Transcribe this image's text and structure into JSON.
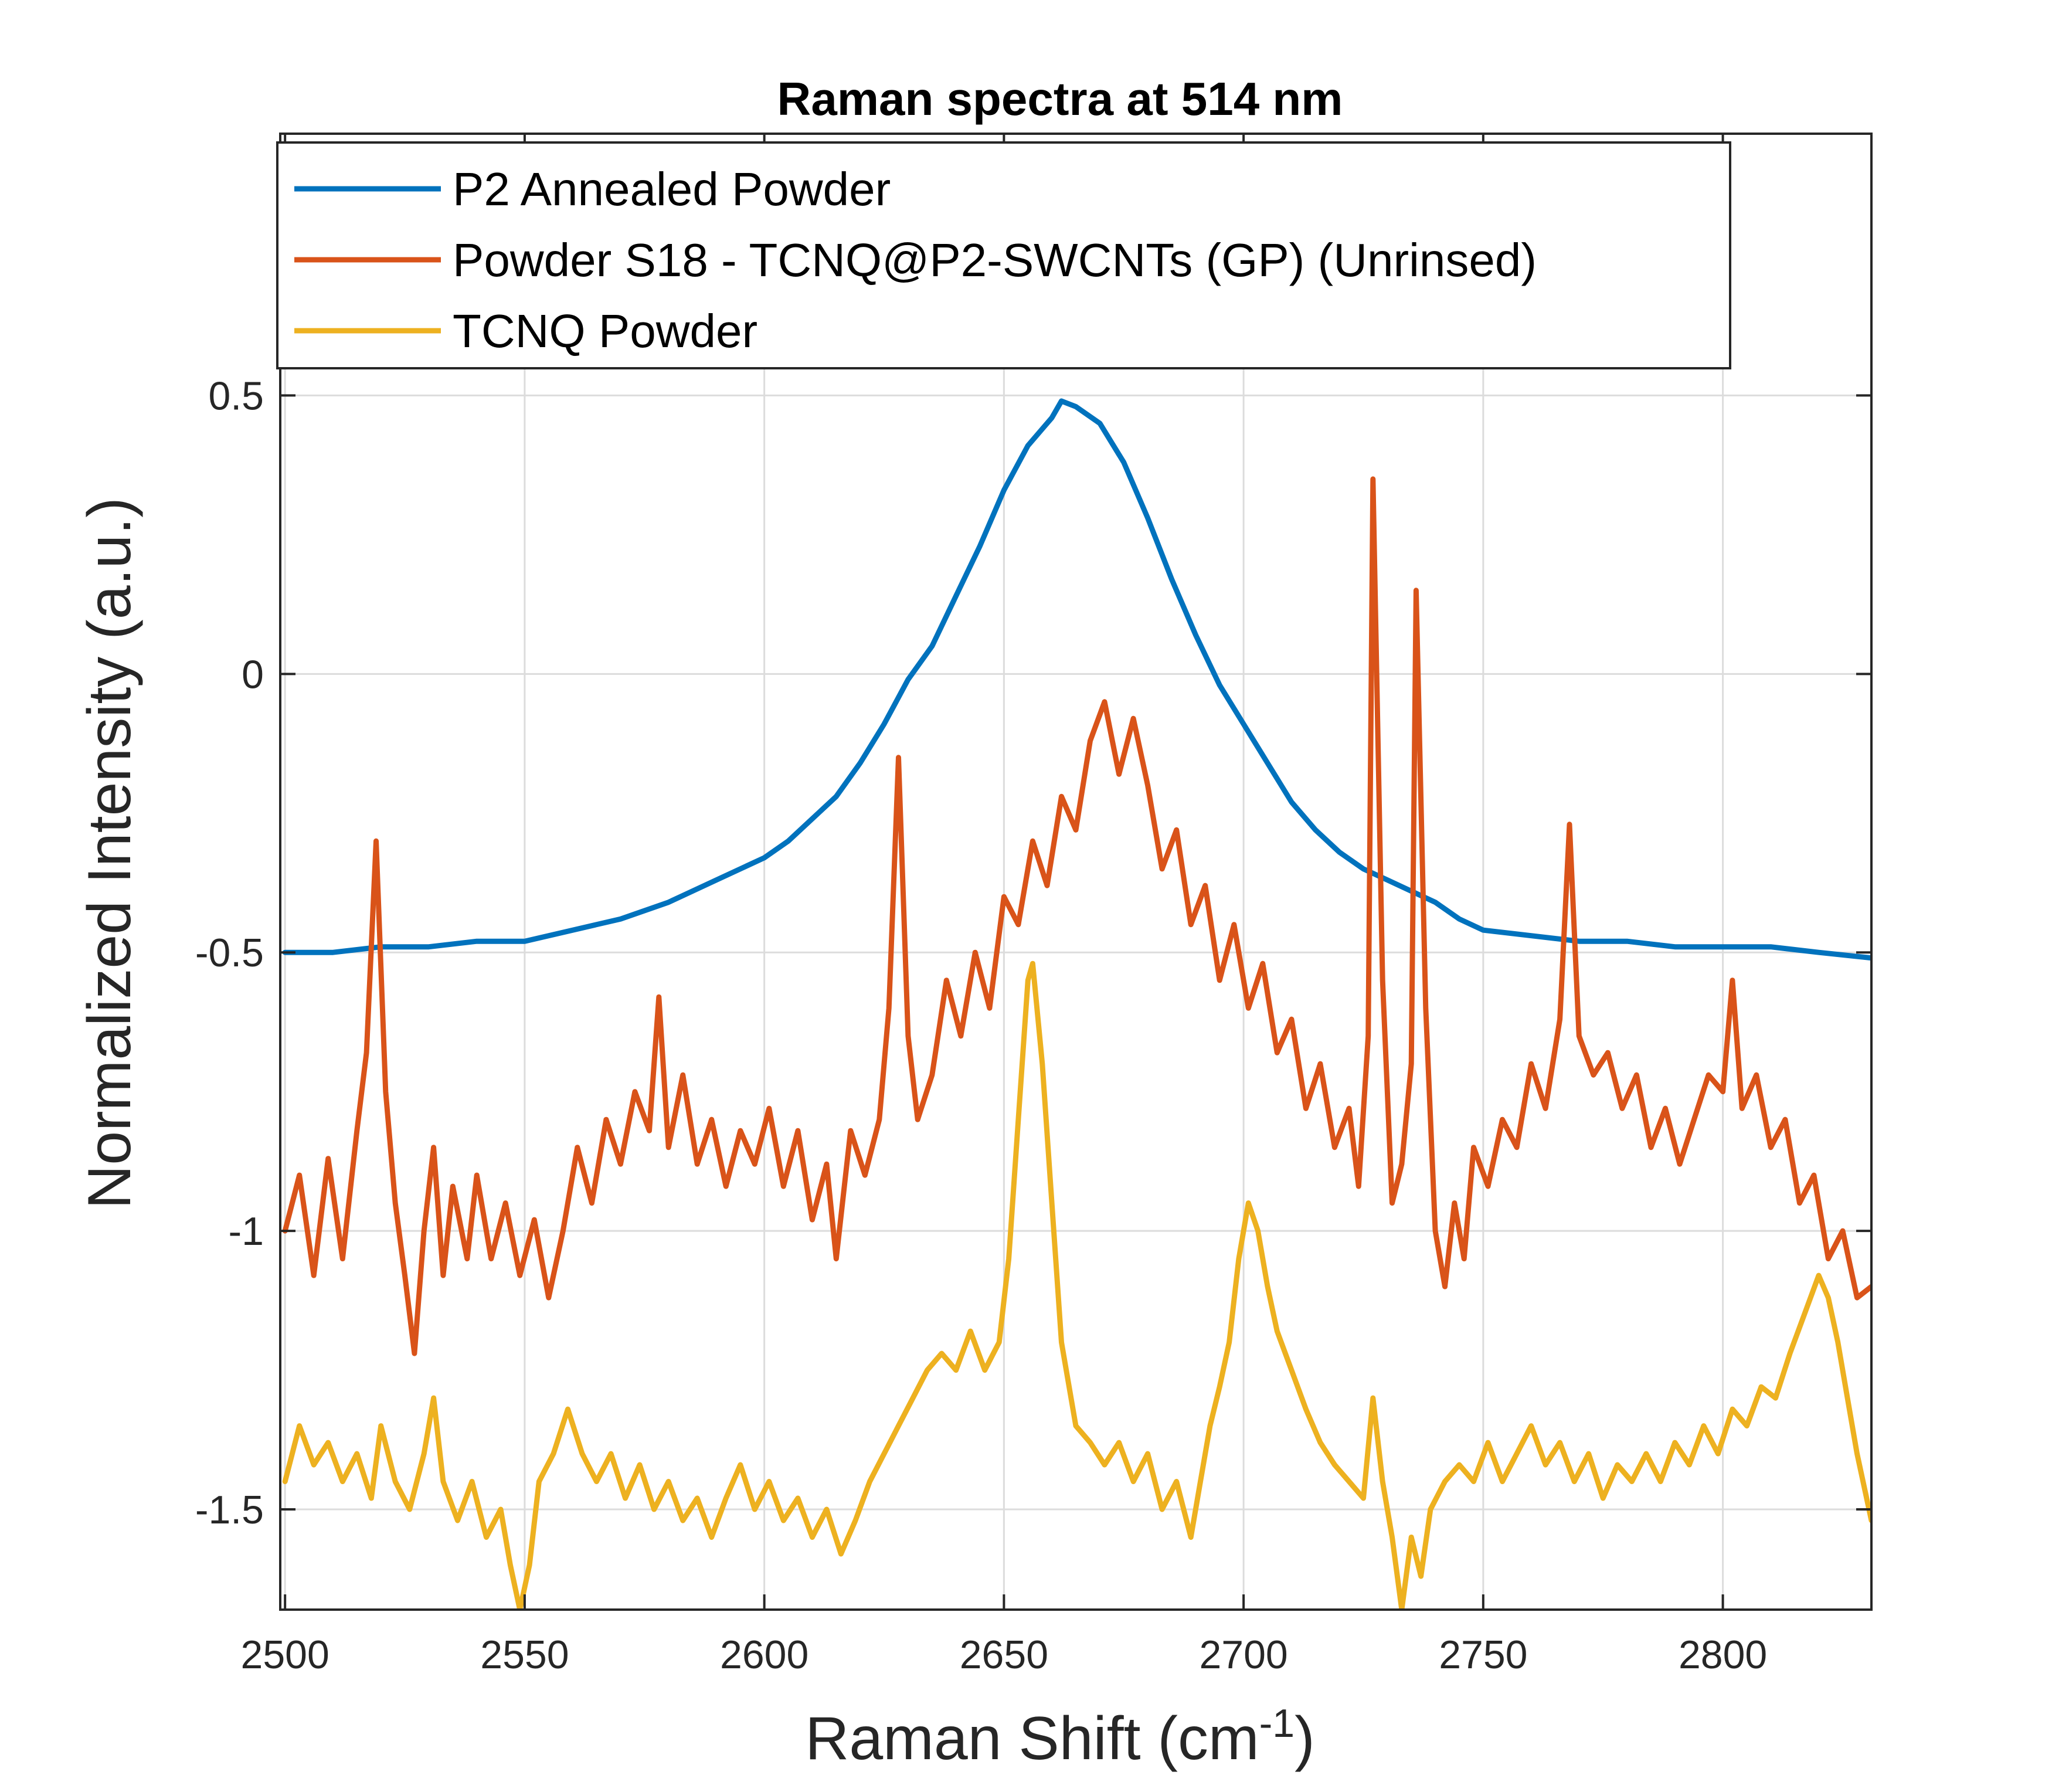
{
  "chart_data": {
    "type": "line",
    "title": "Raman spectra at 514 nm",
    "xlabel": "Raman Shift (cm",
    "xlabel_superscript": "-1",
    "xlabel_suffix": ")",
    "ylabel": "Normalized Intensity (a.u.)",
    "xlim": [
      2499,
      2831
    ],
    "ylim": [
      -1.68,
      0.97
    ],
    "xticks": [
      2500,
      2550,
      2600,
      2650,
      2700,
      2750,
      2800
    ],
    "xtick_labels": [
      "2500",
      "2550",
      "2600",
      "2650",
      "2700",
      "2750",
      "2800"
    ],
    "yticks": [
      -1.5,
      -1,
      -0.5,
      0,
      0.5
    ],
    "ytick_labels": [
      "-1.5",
      "-1",
      "-0.5",
      "0",
      "0.5"
    ],
    "grid": true,
    "legend_position": "top-left",
    "series": [
      {
        "name": "P2 Annealed Powder",
        "color": "#0072BD",
        "points": [
          [
            2500,
            -0.5
          ],
          [
            2510,
            -0.5
          ],
          [
            2520,
            -0.49
          ],
          [
            2530,
            -0.49
          ],
          [
            2540,
            -0.48
          ],
          [
            2550,
            -0.48
          ],
          [
            2560,
            -0.46
          ],
          [
            2570,
            -0.44
          ],
          [
            2580,
            -0.41
          ],
          [
            2590,
            -0.37
          ],
          [
            2600,
            -0.33
          ],
          [
            2605,
            -0.3
          ],
          [
            2610,
            -0.26
          ],
          [
            2615,
            -0.22
          ],
          [
            2620,
            -0.16
          ],
          [
            2625,
            -0.09
          ],
          [
            2630,
            -0.01
          ],
          [
            2635,
            0.05
          ],
          [
            2640,
            0.14
          ],
          [
            2645,
            0.23
          ],
          [
            2650,
            0.33
          ],
          [
            2655,
            0.41
          ],
          [
            2660,
            0.46
          ],
          [
            2662,
            0.49
          ],
          [
            2665,
            0.48
          ],
          [
            2670,
            0.45
          ],
          [
            2675,
            0.38
          ],
          [
            2680,
            0.28
          ],
          [
            2685,
            0.17
          ],
          [
            2690,
            0.07
          ],
          [
            2695,
            -0.02
          ],
          [
            2700,
            -0.09
          ],
          [
            2705,
            -0.16
          ],
          [
            2710,
            -0.23
          ],
          [
            2715,
            -0.28
          ],
          [
            2720,
            -0.32
          ],
          [
            2725,
            -0.35
          ],
          [
            2730,
            -0.37
          ],
          [
            2735,
            -0.39
          ],
          [
            2740,
            -0.41
          ],
          [
            2745,
            -0.44
          ],
          [
            2750,
            -0.46
          ],
          [
            2760,
            -0.47
          ],
          [
            2770,
            -0.48
          ],
          [
            2780,
            -0.48
          ],
          [
            2790,
            -0.49
          ],
          [
            2800,
            -0.49
          ],
          [
            2810,
            -0.49
          ],
          [
            2820,
            -0.5
          ],
          [
            2831,
            -0.51
          ]
        ]
      },
      {
        "name": "Powder S18 - TCNQ@P2-SWCNTs (GP) (Unrinsed)",
        "color": "#D95319",
        "points": [
          [
            2500,
            -1.0
          ],
          [
            2503,
            -0.9
          ],
          [
            2506,
            -1.08
          ],
          [
            2509,
            -0.87
          ],
          [
            2512,
            -1.05
          ],
          [
            2515,
            -0.82
          ],
          [
            2517,
            -0.68
          ],
          [
            2519,
            -0.3
          ],
          [
            2521,
            -0.75
          ],
          [
            2523,
            -0.95
          ],
          [
            2525,
            -1.08
          ],
          [
            2527,
            -1.22
          ],
          [
            2529,
            -1.0
          ],
          [
            2531,
            -0.85
          ],
          [
            2533,
            -1.08
          ],
          [
            2535,
            -0.92
          ],
          [
            2538,
            -1.05
          ],
          [
            2540,
            -0.9
          ],
          [
            2543,
            -1.05
          ],
          [
            2546,
            -0.95
          ],
          [
            2549,
            -1.08
          ],
          [
            2552,
            -0.98
          ],
          [
            2555,
            -1.12
          ],
          [
            2558,
            -1.0
          ],
          [
            2561,
            -0.85
          ],
          [
            2564,
            -0.95
          ],
          [
            2567,
            -0.8
          ],
          [
            2570,
            -0.88
          ],
          [
            2573,
            -0.75
          ],
          [
            2576,
            -0.82
          ],
          [
            2578,
            -0.58
          ],
          [
            2580,
            -0.85
          ],
          [
            2583,
            -0.72
          ],
          [
            2586,
            -0.88
          ],
          [
            2589,
            -0.8
          ],
          [
            2592,
            -0.92
          ],
          [
            2595,
            -0.82
          ],
          [
            2598,
            -0.88
          ],
          [
            2601,
            -0.78
          ],
          [
            2604,
            -0.92
          ],
          [
            2607,
            -0.82
          ],
          [
            2610,
            -0.98
          ],
          [
            2613,
            -0.88
          ],
          [
            2615,
            -1.05
          ],
          [
            2618,
            -0.82
          ],
          [
            2621,
            -0.9
          ],
          [
            2624,
            -0.8
          ],
          [
            2626,
            -0.6
          ],
          [
            2628,
            -0.15
          ],
          [
            2630,
            -0.65
          ],
          [
            2632,
            -0.8
          ],
          [
            2635,
            -0.72
          ],
          [
            2638,
            -0.55
          ],
          [
            2641,
            -0.65
          ],
          [
            2644,
            -0.5
          ],
          [
            2647,
            -0.6
          ],
          [
            2650,
            -0.4
          ],
          [
            2653,
            -0.45
          ],
          [
            2656,
            -0.3
          ],
          [
            2659,
            -0.38
          ],
          [
            2662,
            -0.22
          ],
          [
            2665,
            -0.28
          ],
          [
            2668,
            -0.12
          ],
          [
            2671,
            -0.05
          ],
          [
            2674,
            -0.18
          ],
          [
            2677,
            -0.08
          ],
          [
            2680,
            -0.2
          ],
          [
            2683,
            -0.35
          ],
          [
            2686,
            -0.28
          ],
          [
            2689,
            -0.45
          ],
          [
            2692,
            -0.38
          ],
          [
            2695,
            -0.55
          ],
          [
            2698,
            -0.45
          ],
          [
            2701,
            -0.6
          ],
          [
            2704,
            -0.52
          ],
          [
            2707,
            -0.68
          ],
          [
            2710,
            -0.62
          ],
          [
            2713,
            -0.78
          ],
          [
            2716,
            -0.7
          ],
          [
            2719,
            -0.85
          ],
          [
            2722,
            -0.78
          ],
          [
            2724,
            -0.92
          ],
          [
            2726,
            -0.65
          ],
          [
            2727,
            0.35
          ],
          [
            2729,
            -0.55
          ],
          [
            2731,
            -0.95
          ],
          [
            2733,
            -0.88
          ],
          [
            2735,
            -0.7
          ],
          [
            2736,
            0.15
          ],
          [
            2738,
            -0.6
          ],
          [
            2740,
            -1.0
          ],
          [
            2742,
            -1.1
          ],
          [
            2744,
            -0.95
          ],
          [
            2746,
            -1.05
          ],
          [
            2748,
            -0.85
          ],
          [
            2751,
            -0.92
          ],
          [
            2754,
            -0.8
          ],
          [
            2757,
            -0.85
          ],
          [
            2760,
            -0.7
          ],
          [
            2763,
            -0.78
          ],
          [
            2766,
            -0.62
          ],
          [
            2768,
            -0.27
          ],
          [
            2770,
            -0.65
          ],
          [
            2773,
            -0.72
          ],
          [
            2776,
            -0.68
          ],
          [
            2779,
            -0.78
          ],
          [
            2782,
            -0.72
          ],
          [
            2785,
            -0.85
          ],
          [
            2788,
            -0.78
          ],
          [
            2791,
            -0.88
          ],
          [
            2794,
            -0.8
          ],
          [
            2797,
            -0.72
          ],
          [
            2800,
            -0.75
          ],
          [
            2802,
            -0.55
          ],
          [
            2804,
            -0.78
          ],
          [
            2807,
            -0.72
          ],
          [
            2810,
            -0.85
          ],
          [
            2813,
            -0.8
          ],
          [
            2816,
            -0.95
          ],
          [
            2819,
            -0.9
          ],
          [
            2822,
            -1.05
          ],
          [
            2825,
            -1.0
          ],
          [
            2828,
            -1.12
          ],
          [
            2831,
            -1.1
          ]
        ]
      },
      {
        "name": "TCNQ Powder",
        "color": "#EDB120",
        "points": [
          [
            2500,
            -1.45
          ],
          [
            2503,
            -1.35
          ],
          [
            2506,
            -1.42
          ],
          [
            2509,
            -1.38
          ],
          [
            2512,
            -1.45
          ],
          [
            2515,
            -1.4
          ],
          [
            2518,
            -1.48
          ],
          [
            2520,
            -1.35
          ],
          [
            2523,
            -1.45
          ],
          [
            2526,
            -1.5
          ],
          [
            2529,
            -1.4
          ],
          [
            2531,
            -1.3
          ],
          [
            2533,
            -1.45
          ],
          [
            2536,
            -1.52
          ],
          [
            2539,
            -1.45
          ],
          [
            2542,
            -1.55
          ],
          [
            2545,
            -1.5
          ],
          [
            2547,
            -1.6
          ],
          [
            2549,
            -1.68
          ],
          [
            2551,
            -1.6
          ],
          [
            2553,
            -1.45
          ],
          [
            2556,
            -1.4
          ],
          [
            2559,
            -1.32
          ],
          [
            2562,
            -1.4
          ],
          [
            2565,
            -1.45
          ],
          [
            2568,
            -1.4
          ],
          [
            2571,
            -1.48
          ],
          [
            2574,
            -1.42
          ],
          [
            2577,
            -1.5
          ],
          [
            2580,
            -1.45
          ],
          [
            2583,
            -1.52
          ],
          [
            2586,
            -1.48
          ],
          [
            2589,
            -1.55
          ],
          [
            2592,
            -1.48
          ],
          [
            2595,
            -1.42
          ],
          [
            2598,
            -1.5
          ],
          [
            2601,
            -1.45
          ],
          [
            2604,
            -1.52
          ],
          [
            2607,
            -1.48
          ],
          [
            2610,
            -1.55
          ],
          [
            2613,
            -1.5
          ],
          [
            2616,
            -1.58
          ],
          [
            2619,
            -1.52
          ],
          [
            2622,
            -1.45
          ],
          [
            2625,
            -1.4
          ],
          [
            2628,
            -1.35
          ],
          [
            2631,
            -1.3
          ],
          [
            2634,
            -1.25
          ],
          [
            2637,
            -1.22
          ],
          [
            2640,
            -1.25
          ],
          [
            2643,
            -1.18
          ],
          [
            2646,
            -1.25
          ],
          [
            2649,
            -1.2
          ],
          [
            2651,
            -1.05
          ],
          [
            2653,
            -0.8
          ],
          [
            2655,
            -0.55
          ],
          [
            2656,
            -0.52
          ],
          [
            2658,
            -0.7
          ],
          [
            2660,
            -0.95
          ],
          [
            2662,
            -1.2
          ],
          [
            2665,
            -1.35
          ],
          [
            2668,
            -1.38
          ],
          [
            2671,
            -1.42
          ],
          [
            2674,
            -1.38
          ],
          [
            2677,
            -1.45
          ],
          [
            2680,
            -1.4
          ],
          [
            2683,
            -1.5
          ],
          [
            2686,
            -1.45
          ],
          [
            2689,
            -1.55
          ],
          [
            2691,
            -1.45
          ],
          [
            2693,
            -1.35
          ],
          [
            2695,
            -1.28
          ],
          [
            2697,
            -1.2
          ],
          [
            2699,
            -1.05
          ],
          [
            2701,
            -0.95
          ],
          [
            2703,
            -1.0
          ],
          [
            2705,
            -1.1
          ],
          [
            2707,
            -1.18
          ],
          [
            2710,
            -1.25
          ],
          [
            2713,
            -1.32
          ],
          [
            2716,
            -1.38
          ],
          [
            2719,
            -1.42
          ],
          [
            2722,
            -1.45
          ],
          [
            2725,
            -1.48
          ],
          [
            2727,
            -1.3
          ],
          [
            2729,
            -1.45
          ],
          [
            2731,
            -1.55
          ],
          [
            2733,
            -1.68
          ],
          [
            2735,
            -1.55
          ],
          [
            2737,
            -1.62
          ],
          [
            2739,
            -1.5
          ],
          [
            2742,
            -1.45
          ],
          [
            2745,
            -1.42
          ],
          [
            2748,
            -1.45
          ],
          [
            2751,
            -1.38
          ],
          [
            2754,
            -1.45
          ],
          [
            2757,
            -1.4
          ],
          [
            2760,
            -1.35
          ],
          [
            2763,
            -1.42
          ],
          [
            2766,
            -1.38
          ],
          [
            2769,
            -1.45
          ],
          [
            2772,
            -1.4
          ],
          [
            2775,
            -1.48
          ],
          [
            2778,
            -1.42
          ],
          [
            2781,
            -1.45
          ],
          [
            2784,
            -1.4
          ],
          [
            2787,
            -1.45
          ],
          [
            2790,
            -1.38
          ],
          [
            2793,
            -1.42
          ],
          [
            2796,
            -1.35
          ],
          [
            2799,
            -1.4
          ],
          [
            2802,
            -1.32
          ],
          [
            2805,
            -1.35
          ],
          [
            2808,
            -1.28
          ],
          [
            2811,
            -1.3
          ],
          [
            2814,
            -1.22
          ],
          [
            2817,
            -1.15
          ],
          [
            2820,
            -1.08
          ],
          [
            2822,
            -1.12
          ],
          [
            2824,
            -1.2
          ],
          [
            2826,
            -1.3
          ],
          [
            2828,
            -1.4
          ],
          [
            2831,
            -1.52
          ]
        ]
      }
    ]
  }
}
